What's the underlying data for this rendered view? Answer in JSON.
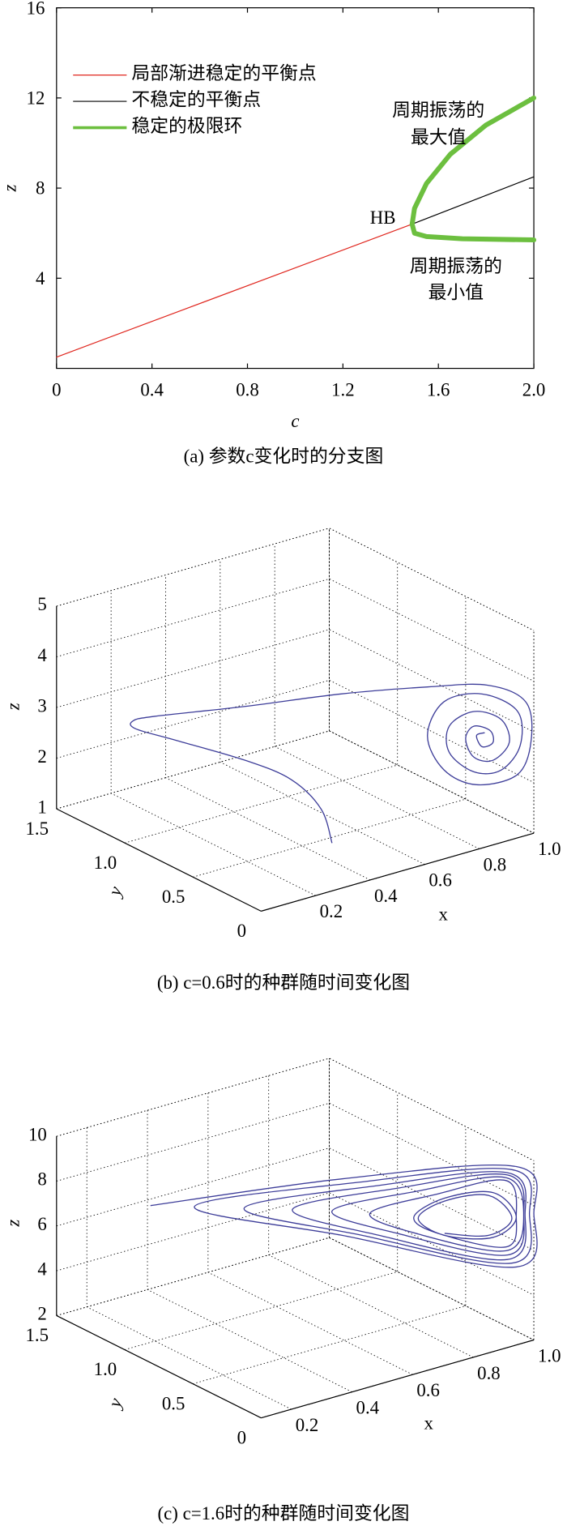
{
  "chart_data": [
    {
      "type": "line",
      "xlabel": "c",
      "ylabel": "z",
      "caption": "(a) 参数c变化时的分支图",
      "xlim": [
        0,
        2
      ],
      "xticks": [
        0,
        0.4,
        0.8,
        1.2,
        1.6,
        {
          "value": 2,
          "label": "2.0"
        }
      ],
      "ylim": [
        0,
        16
      ],
      "yticks": [
        4,
        8,
        12,
        16
      ],
      "legend": "upper left",
      "series": [
        {
          "name": "局部渐进稳定的平衡点",
          "color": "#e0261e",
          "linewidth": 1,
          "x": [
            0,
            1.49
          ],
          "values": [
            0.5,
            6.4
          ]
        },
        {
          "name": "不稳定的平衡点",
          "color": "#000000",
          "linewidth": 1,
          "x": [
            1.49,
            2
          ],
          "values": [
            6.4,
            8.5
          ]
        },
        {
          "name": "稳定的极限环",
          "color": "#6cbf3f",
          "linewidth": 5,
          "x": [
            2,
            1.8,
            1.65,
            1.55,
            1.5,
            1.49,
            1.5,
            1.55,
            1.7,
            2
          ],
          "values": [
            12,
            10.8,
            9.5,
            8.2,
            7.1,
            6.4,
            6.0,
            5.85,
            5.75,
            5.7
          ]
        }
      ],
      "annotations": [
        "HB",
        "周期振荡的",
        "最大值",
        "周期振荡的",
        "最小值"
      ]
    },
    {
      "type": "line3d",
      "xlabel": "x",
      "ylabel": "y",
      "zlabel": "z",
      "caption": "(b) c=0.6时的种群随时间变化图",
      "xlim": [
        0,
        1
      ],
      "xticks": [
        0.2,
        0.4,
        0.6,
        0.8,
        {
          "value": 1,
          "label": "1.0"
        }
      ],
      "ylim": [
        0,
        1.5
      ],
      "yticks": [
        0,
        0.5,
        {
          "value": 1,
          "label": "1.0"
        },
        1.5
      ],
      "zlim": [
        1,
        5
      ],
      "zticks": [
        1,
        2,
        3,
        4,
        5
      ],
      "series": [
        {
          "color": "#3d3d99",
          "x": [
            0.41,
            0.42,
            0.41,
            0.34,
            0.19,
            0.09,
            0.08,
            0.11,
            0.34,
            0.59,
            0.81,
            0.93,
            0.97,
            0.99,
            0.94,
            0.79,
            0.67,
            0.61,
            0.67,
            0.81,
            0.94,
            0.95,
            0.88,
            0.78,
            0.69,
            0.69,
            0.78,
            0.88,
            0.91,
            0.85,
            0.78,
            0.75,
            0.78,
            0.84,
            0.85,
            0.81,
            0.79,
            0.82
          ],
          "y": [
            0.3,
            0.4,
            0.6,
            0.8,
            1.0,
            1.1,
            1.1,
            1.0,
            0.8,
            0.6,
            0.4,
            0.2,
            0,
            0,
            0,
            0,
            0,
            0,
            0,
            0,
            0,
            0,
            0,
            0,
            0,
            0,
            0,
            0,
            0,
            0,
            0,
            0,
            0,
            0,
            0,
            0,
            0,
            0
          ],
          "z": [
            1.31,
            1.83,
            2.16,
            2.38,
            2.73,
            2.98,
            3.15,
            3.33,
            3.44,
            3.57,
            3.64,
            3.76,
            3.64,
            2.84,
            2.25,
            2.28,
            2.76,
            3.52,
            4.1,
            4.04,
            3.5,
            2.81,
            2.43,
            2.55,
            3.07,
            3.59,
            3.74,
            3.43,
            2.93,
            2.67,
            2.84,
            3.25,
            3.45,
            3.27,
            3.02,
            3.0,
            3.25,
            3.26
          ]
        }
      ]
    },
    {
      "type": "line3d",
      "xlabel": "x",
      "ylabel": "y",
      "zlabel": "z",
      "caption": "(c) c=1.6时的种群随时间变化图",
      "xlim": [
        0.1,
        1
      ],
      "xticks": [
        0.2,
        0.4,
        0.6,
        0.8,
        {
          "value": 1,
          "label": "1.0"
        }
      ],
      "ylim": [
        0,
        1.5
      ],
      "yticks": [
        0,
        0.5,
        {
          "value": 1,
          "label": "1.0"
        },
        1.5
      ],
      "zlim": [
        2,
        10
      ],
      "zticks": [
        2,
        4,
        6,
        8,
        10
      ],
      "series": [
        {
          "color": "#3d3d99",
          "x": [
            0.14,
            0.57,
            0.96,
            1,
            0.96,
            0.57,
            0.24,
            0.61,
            0.95,
            0.99,
            0.95,
            0.61,
            0.35,
            0.65,
            0.94,
            0.98,
            0.94,
            0.65,
            0.46,
            0.7,
            0.94,
            0.98,
            0.94,
            0.7,
            0.55,
            0.74,
            0.94,
            0.98,
            0.94,
            0.74,
            0.63,
            0.78,
            0.94,
            0.96,
            0.94,
            0.78,
            0.73,
            0.8,
            0.91,
            0.96,
            0.91,
            0.8,
            0.74,
            0.8,
            0.9,
            0.95,
            0.9,
            0.8
          ],
          "y": [
            0.9,
            0.45,
            0.04,
            0,
            0.04,
            0.45,
            0.8,
            0.41,
            0.05,
            0.01,
            0.05,
            0.41,
            0.68,
            0.36,
            0.06,
            0.02,
            0.06,
            0.36,
            0.57,
            0.32,
            0.06,
            0.03,
            0.06,
            0.32,
            0.48,
            0.27,
            0.07,
            0.03,
            0.07,
            0.27,
            0.38,
            0.22,
            0.07,
            0.04,
            0.07,
            0.22,
            0.28,
            0.21,
            0.1,
            0.04,
            0.1,
            0.21,
            0.27,
            0.21,
            0.11,
            0.05,
            0.11,
            0.21
          ],
          "z": [
            8.58,
            9.48,
            9.77,
            7.65,
            5.29,
            6.96,
            8.45,
            9.3,
            9.64,
            7.65,
            5.47,
            6.95,
            8.32,
            9.15,
            9.51,
            7.61,
            5.64,
            6.93,
            8.18,
            8.97,
            9.41,
            7.57,
            5.84,
            6.92,
            8.03,
            8.83,
            9.26,
            7.53,
            6.0,
            6.91,
            7.92,
            8.69,
            9.13,
            7.55,
            6.17,
            6.95,
            7.67,
            8.46,
            8.62,
            7.51,
            6.62,
            6.8,
            7.61,
            8.33,
            8.5,
            7.47,
            6.72,
            6.89
          ]
        }
      ]
    }
  ]
}
